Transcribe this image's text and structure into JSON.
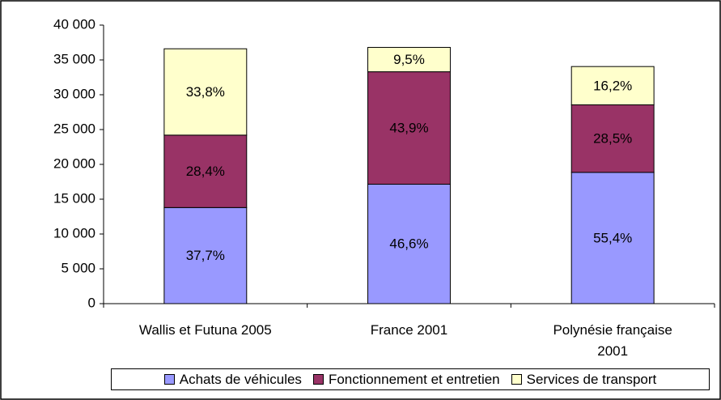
{
  "chart_data": {
    "type": "stacked_bar",
    "categories": [
      "Wallis et Futuna 2005",
      "France 2001",
      "Polynésie française 2001"
    ],
    "series": [
      {
        "name": "Achats de véhicules",
        "color": "#9999ff",
        "values": [
          13800,
          17150,
          18850
        ],
        "percents": [
          37.7,
          46.6,
          55.4
        ],
        "percent_labels": [
          "37,7%",
          "46,6%",
          "55,4%"
        ]
      },
      {
        "name": "Fonctionnement et entretien",
        "color": "#993366",
        "values": [
          10400,
          16150,
          9700
        ],
        "percents": [
          28.4,
          43.9,
          28.5
        ],
        "percent_labels": [
          "28,4%",
          "43,9%",
          "28,5%"
        ]
      },
      {
        "name": "Services de transport",
        "color": "#ffffcc",
        "values": [
          12400,
          3500,
          5500
        ],
        "percents": [
          33.8,
          9.5,
          16.2
        ],
        "percent_labels": [
          "33,8%",
          "9,5%",
          "16,2%"
        ]
      }
    ],
    "ylim": [
      0,
      40000
    ],
    "yticks": [
      {
        "value": 0,
        "label": "0"
      },
      {
        "value": 5000,
        "label": "5 000"
      },
      {
        "value": 10000,
        "label": "10 000"
      },
      {
        "value": 15000,
        "label": "15 000"
      },
      {
        "value": 20000,
        "label": "20 000"
      },
      {
        "value": 25000,
        "label": "25 000"
      },
      {
        "value": 30000,
        "label": "30 000"
      },
      {
        "value": 35000,
        "label": "35 000"
      },
      {
        "value": 40000,
        "label": "40 000"
      }
    ],
    "grid": false,
    "legend": "bottom"
  }
}
